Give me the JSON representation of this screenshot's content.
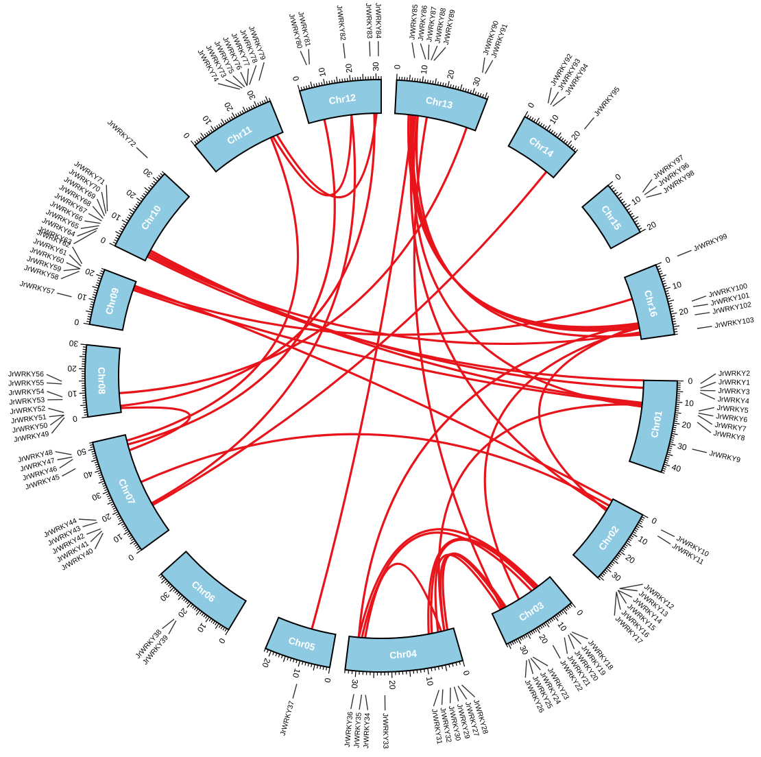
{
  "colors": {
    "chromosome_fill": "#8fcae3",
    "link": "#e8141b",
    "outline": "#000000"
  },
  "chromosomes": [
    {
      "name": "Chr01",
      "length": 44,
      "start_deg": 91.0,
      "end_deg": 109.0,
      "ticks": [
        0,
        10,
        20,
        30,
        40
      ]
    },
    {
      "name": "Chr02",
      "length": 36,
      "start_deg": 118.0,
      "end_deg": 133.0,
      "ticks": [
        0,
        10,
        20,
        30
      ]
    },
    {
      "name": "Chr03",
      "length": 36,
      "start_deg": 140.0,
      "end_deg": 155.0,
      "ticks": [
        0,
        10,
        20,
        30
      ]
    },
    {
      "name": "Chr04",
      "length": 33,
      "start_deg": 164.0,
      "end_deg": 187.0,
      "ticks": [
        0,
        10,
        20,
        30
      ]
    },
    {
      "name": "Chr05",
      "length": 22,
      "start_deg": 190.0,
      "end_deg": 203.0,
      "ticks": [
        0,
        10,
        20
      ]
    },
    {
      "name": "Chr06",
      "length": 38,
      "start_deg": 211.0,
      "end_deg": 228.0,
      "ticks": [
        0,
        10,
        20,
        30
      ]
    },
    {
      "name": "Chr07",
      "length": 53,
      "start_deg": 234.0,
      "end_deg": 257.0,
      "ticks": [
        0,
        10,
        20,
        30,
        40,
        50
      ]
    },
    {
      "name": "Chr08",
      "length": 30,
      "start_deg": 262.0,
      "end_deg": 276.0,
      "ticks": [
        0,
        10,
        20,
        30
      ]
    },
    {
      "name": "Chr09",
      "length": 23,
      "start_deg": 280.0,
      "end_deg": 291.0,
      "ticks": [
        0,
        10,
        20
      ]
    },
    {
      "name": "Chr10",
      "length": 34,
      "start_deg": 296.0,
      "end_deg": 313.0,
      "ticks": [
        0,
        10,
        20,
        30
      ]
    },
    {
      "name": "Chr11",
      "length": 36,
      "start_deg": 321.0,
      "end_deg": 338.0,
      "ticks": [
        0,
        10,
        20,
        30
      ]
    },
    {
      "name": "Chr12",
      "length": 32,
      "start_deg": 344.0,
      "end_deg": 360.0,
      "ticks": [
        0,
        10,
        20,
        30
      ]
    },
    {
      "name": "Chr13",
      "length": 36,
      "start_deg": 3.0,
      "end_deg": 21.0,
      "ticks": [
        0,
        10,
        20,
        30
      ]
    },
    {
      "name": "Chr14",
      "length": 24,
      "start_deg": 29.0,
      "end_deg": 41.0,
      "ticks": [
        0,
        10,
        20
      ]
    },
    {
      "name": "Chr15",
      "length": 20,
      "start_deg": 50.0,
      "end_deg": 61.0,
      "ticks": [
        0,
        10,
        20
      ]
    },
    {
      "name": "Chr16",
      "length": 28,
      "start_deg": 68.0,
      "end_deg": 82.0,
      "ticks": [
        0,
        10,
        20
      ]
    }
  ],
  "genes": [
    {
      "name": "JrWRKY1",
      "chr": "Chr01",
      "pos": 3
    },
    {
      "name": "JrWRKY2",
      "chr": "Chr01",
      "pos": 1
    },
    {
      "name": "JrWRKY3",
      "chr": "Chr01",
      "pos": 4
    },
    {
      "name": "JrWRKY4",
      "chr": "Chr01",
      "pos": 5
    },
    {
      "name": "JrWRKY5",
      "chr": "Chr01",
      "pos": 13
    },
    {
      "name": "JrWRKY6",
      "chr": "Chr01",
      "pos": 14
    },
    {
      "name": "JrWRKY7",
      "chr": "Chr01",
      "pos": 15
    },
    {
      "name": "JrWRKY8",
      "chr": "Chr01",
      "pos": 18
    },
    {
      "name": "JrWRKY9",
      "chr": "Chr01",
      "pos": 30
    },
    {
      "name": "JrWRKY10",
      "chr": "Chr02",
      "pos": 2
    },
    {
      "name": "JrWRKY11",
      "chr": "Chr02",
      "pos": 5
    },
    {
      "name": "JrWRKY12",
      "chr": "Chr02",
      "pos": 33
    },
    {
      "name": "JrWRKY13",
      "chr": "Chr02",
      "pos": 33
    },
    {
      "name": "JrWRKY14",
      "chr": "Chr02",
      "pos": 34
    },
    {
      "name": "JrWRKY15",
      "chr": "Chr02",
      "pos": 34
    },
    {
      "name": "JrWRKY16",
      "chr": "Chr02",
      "pos": 35
    },
    {
      "name": "JrWRKY17",
      "chr": "Chr02",
      "pos": 35
    },
    {
      "name": "JrWRKY18",
      "chr": "Chr03",
      "pos": 8
    },
    {
      "name": "JrWRKY19",
      "chr": "Chr03",
      "pos": 9
    },
    {
      "name": "JrWRKY20",
      "chr": "Chr03",
      "pos": 10
    },
    {
      "name": "JrWRKY21",
      "chr": "Chr03",
      "pos": 12
    },
    {
      "name": "JrWRKY22",
      "chr": "Chr03",
      "pos": 18
    },
    {
      "name": "JrWRKY23",
      "chr": "Chr03",
      "pos": 28
    },
    {
      "name": "JrWRKY24",
      "chr": "Chr03",
      "pos": 29
    },
    {
      "name": "JrWRKY25",
      "chr": "Chr03",
      "pos": 30
    },
    {
      "name": "JrWRKY26",
      "chr": "Chr03",
      "pos": 31
    },
    {
      "name": "JrWRKY27",
      "chr": "Chr04",
      "pos": 3
    },
    {
      "name": "JrWRKY28",
      "chr": "Chr04",
      "pos": 2
    },
    {
      "name": "JrWRKY29",
      "chr": "Chr04",
      "pos": 4
    },
    {
      "name": "JrWRKY30",
      "chr": "Chr04",
      "pos": 5
    },
    {
      "name": "JrWRKY31",
      "chr": "Chr04",
      "pos": 8
    },
    {
      "name": "JrWRKY32",
      "chr": "Chr04",
      "pos": 7
    },
    {
      "name": "JrWRKY33",
      "chr": "Chr04",
      "pos": 22
    },
    {
      "name": "JrWRKY34",
      "chr": "Chr04",
      "pos": 27
    },
    {
      "name": "JrWRKY35",
      "chr": "Chr04",
      "pos": 28
    },
    {
      "name": "JrWRKY36",
      "chr": "Chr04",
      "pos": 30
    },
    {
      "name": "JrWRKY37",
      "chr": "Chr05",
      "pos": 9
    },
    {
      "name": "JrWRKY38",
      "chr": "Chr06",
      "pos": 21
    },
    {
      "name": "JrWRKY39",
      "chr": "Chr06",
      "pos": 20
    },
    {
      "name": "JrWRKY40",
      "chr": "Chr07",
      "pos": 15
    },
    {
      "name": "JrWRKY41",
      "chr": "Chr07",
      "pos": 16
    },
    {
      "name": "JrWRKY42",
      "chr": "Chr07",
      "pos": 17
    },
    {
      "name": "JrWRKY43",
      "chr": "Chr07",
      "pos": 20
    },
    {
      "name": "JrWRKY44",
      "chr": "Chr07",
      "pos": 21
    },
    {
      "name": "JrWRKY45",
      "chr": "Chr07",
      "pos": 44
    },
    {
      "name": "JrWRKY46",
      "chr": "Chr07",
      "pos": 48
    },
    {
      "name": "JrWRKY47",
      "chr": "Chr07",
      "pos": 49
    },
    {
      "name": "JrWRKY48",
      "chr": "Chr07",
      "pos": 50
    },
    {
      "name": "JrWRKY49",
      "chr": "Chr08",
      "pos": 1
    },
    {
      "name": "JrWRKY50",
      "chr": "Chr08",
      "pos": 2
    },
    {
      "name": "JrWRKY51",
      "chr": "Chr08",
      "pos": 2
    },
    {
      "name": "JrWRKY52",
      "chr": "Chr08",
      "pos": 3
    },
    {
      "name": "JrWRKY53",
      "chr": "Chr08",
      "pos": 8
    },
    {
      "name": "JrWRKY54",
      "chr": "Chr08",
      "pos": 9
    },
    {
      "name": "JrWRKY55",
      "chr": "Chr08",
      "pos": 14
    },
    {
      "name": "JrWRKY56",
      "chr": "Chr08",
      "pos": 15
    },
    {
      "name": "JrWRKY57",
      "chr": "Chr09",
      "pos": 9
    },
    {
      "name": "JrWRKY58",
      "chr": "Chr09",
      "pos": 19
    },
    {
      "name": "JrWRKY59",
      "chr": "Chr09",
      "pos": 20
    },
    {
      "name": "JrWRKY60",
      "chr": "Chr09",
      "pos": 20
    },
    {
      "name": "JrWRKY61",
      "chr": "Chr09",
      "pos": 21
    },
    {
      "name": "JrWRKY62",
      "chr": "Chr09",
      "pos": 22
    },
    {
      "name": "JrWRKY63",
      "chr": "Chr10",
      "pos": 2
    },
    {
      "name": "JrWRKY64",
      "chr": "Chr10",
      "pos": 3
    },
    {
      "name": "JrWRKY65",
      "chr": "Chr10",
      "pos": 4
    },
    {
      "name": "JrWRKY66",
      "chr": "Chr10",
      "pos": 5
    },
    {
      "name": "JrWRKY67",
      "chr": "Chr10",
      "pos": 6
    },
    {
      "name": "JrWRKY68",
      "chr": "Chr10",
      "pos": 7
    },
    {
      "name": "JrWRKY69",
      "chr": "Chr10",
      "pos": 8
    },
    {
      "name": "JrWRKY70",
      "chr": "Chr10",
      "pos": 9
    },
    {
      "name": "JrWRKY71",
      "chr": "Chr10",
      "pos": 10
    },
    {
      "name": "JrWRKY72",
      "chr": "Chr10",
      "pos": 34
    },
    {
      "name": "JrWRKY73",
      "chr": "Chr11",
      "pos": 28
    },
    {
      "name": "JrWRKY74",
      "chr": "Chr11",
      "pos": 27
    },
    {
      "name": "JrWRKY75",
      "chr": "Chr11",
      "pos": 29
    },
    {
      "name": "JrWRKY76",
      "chr": "Chr11",
      "pos": 30
    },
    {
      "name": "JrWRKY77",
      "chr": "Chr11",
      "pos": 30
    },
    {
      "name": "JrWRKY78",
      "chr": "Chr11",
      "pos": 31
    },
    {
      "name": "JrWRKY79",
      "chr": "Chr11",
      "pos": 35
    },
    {
      "name": "JrWRKY80",
      "chr": "Chr12",
      "pos": 5
    },
    {
      "name": "JrWRKY81",
      "chr": "Chr12",
      "pos": 6
    },
    {
      "name": "JrWRKY82",
      "chr": "Chr12",
      "pos": 19
    },
    {
      "name": "JrWRKY83",
      "chr": "Chr12",
      "pos": 28
    },
    {
      "name": "JrWRKY84",
      "chr": "Chr12",
      "pos": 31
    },
    {
      "name": "JrWRKY85",
      "chr": "Chr13",
      "pos": 6
    },
    {
      "name": "JrWRKY86",
      "chr": "Chr13",
      "pos": 10
    },
    {
      "name": "JrWRKY87",
      "chr": "Chr13",
      "pos": 11
    },
    {
      "name": "JrWRKY88",
      "chr": "Chr13",
      "pos": 12
    },
    {
      "name": "JrWRKY89",
      "chr": "Chr13",
      "pos": 13
    },
    {
      "name": "JrWRKY90",
      "chr": "Chr13",
      "pos": 31
    },
    {
      "name": "JrWRKY91",
      "chr": "Chr13",
      "pos": 32
    },
    {
      "name": "JrWRKY92",
      "chr": "Chr14",
      "pos": 5
    },
    {
      "name": "JrWRKY93",
      "chr": "Chr14",
      "pos": 6
    },
    {
      "name": "JrWRKY94",
      "chr": "Chr14",
      "pos": 7
    },
    {
      "name": "JrWRKY95",
      "chr": "Chr14",
      "pos": 21
    },
    {
      "name": "JrWRKY96",
      "chr": "Chr15",
      "pos": 10
    },
    {
      "name": "JrWRKY97",
      "chr": "Chr15",
      "pos": 9
    },
    {
      "name": "JrWRKY98",
      "chr": "Chr15",
      "pos": 11
    },
    {
      "name": "JrWRKY99",
      "chr": "Chr16",
      "pos": 0
    },
    {
      "name": "JrWRKY100",
      "chr": "Chr16",
      "pos": 17
    },
    {
      "name": "JrWRKY101",
      "chr": "Chr16",
      "pos": 19
    },
    {
      "name": "JrWRKY102",
      "chr": "Chr16",
      "pos": 22
    },
    {
      "name": "JrWRKY103",
      "chr": "Chr16",
      "pos": 27
    }
  ],
  "links": [
    {
      "a": "Chr16",
      "pa": 21,
      "b": "Chr13",
      "pb": 6
    },
    {
      "a": "Chr16",
      "pa": 22,
      "b": "Chr13",
      "pb": 7
    },
    {
      "a": "Chr16",
      "pa": 23,
      "b": "Chr13",
      "pb": 8
    },
    {
      "a": "Chr16",
      "pa": 26,
      "b": "Chr13",
      "pb": 10
    },
    {
      "a": "Chr16",
      "pa": 10,
      "b": "Chr09",
      "pb": 20
    },
    {
      "a": "Chr16",
      "pa": 21,
      "b": "Chr04",
      "pb": 30
    },
    {
      "a": "Chr16",
      "pa": 22,
      "b": "Chr02",
      "pb": 7
    },
    {
      "a": "Chr16",
      "pa": 23,
      "b": "Chr03",
      "pb": 20
    },
    {
      "a": "Chr16",
      "pa": 25,
      "b": "Chr10",
      "pb": 3
    },
    {
      "a": "Chr01",
      "pa": 0,
      "b": "Chr10",
      "pb": 2
    },
    {
      "a": "Chr01",
      "pa": 4,
      "b": "Chr10",
      "pb": 4
    },
    {
      "a": "Chr01",
      "pa": 12,
      "b": "Chr10",
      "pb": 5
    },
    {
      "a": "Chr01",
      "pa": 13,
      "b": "Chr09",
      "pb": 19
    },
    {
      "a": "Chr01",
      "pa": 14,
      "b": "Chr13",
      "pb": 10
    },
    {
      "a": "Chr01",
      "pa": 13,
      "b": "Chr04",
      "pb": 3
    },
    {
      "a": "Chr13",
      "pa": 14,
      "b": "Chr03",
      "pb": 30
    },
    {
      "a": "Chr13",
      "pa": 32,
      "b": "Chr08",
      "pb": 9
    },
    {
      "a": "Chr13",
      "pa": 9,
      "b": "Chr02",
      "pb": 6
    },
    {
      "a": "Chr14",
      "pa": 20,
      "b": "Chr07",
      "pb": 15
    },
    {
      "a": "Chr12",
      "pa": 7,
      "b": "Chr07",
      "pb": 48
    },
    {
      "a": "Chr12",
      "pa": 19,
      "b": "Chr07",
      "pb": 16
    },
    {
      "a": "Chr12",
      "pa": 29,
      "b": "Chr08",
      "pb": 3
    },
    {
      "a": "Chr11",
      "pa": 30,
      "b": "Chr07",
      "pb": 50
    },
    {
      "a": "Chr11",
      "pa": 31,
      "b": "Chr12",
      "pb": 19
    },
    {
      "a": "Chr11",
      "pa": 33,
      "b": "Chr12",
      "pb": 30
    },
    {
      "a": "Chr09",
      "pa": 21,
      "b": "Chr02",
      "pb": 1
    },
    {
      "a": "Chr07",
      "pa": 28,
      "b": "Chr02",
      "pb": 4
    },
    {
      "a": "Chr08",
      "pa": 2,
      "b": "Chr07",
      "pb": 45
    },
    {
      "a": "Chr05",
      "pa": 9,
      "b": "Chr13",
      "pb": 8
    },
    {
      "a": "Chr04",
      "pa": 2,
      "b": "Chr03",
      "pb": 28
    },
    {
      "a": "Chr04",
      "pa": 3,
      "b": "Chr03",
      "pb": 29
    },
    {
      "a": "Chr04",
      "pa": 5,
      "b": "Chr03",
      "pb": 31
    },
    {
      "a": "Chr04",
      "pa": 7,
      "b": "Chr03",
      "pb": 10
    },
    {
      "a": "Chr04",
      "pa": 8,
      "b": "Chr03",
      "pb": 9
    },
    {
      "a": "Chr04",
      "pa": 30,
      "b": "Chr03",
      "pb": 8
    },
    {
      "a": "Chr04",
      "pa": 29,
      "b": "Chr03",
      "pb": 12
    },
    {
      "a": "Chr04",
      "pa": 28,
      "b": "Chr04",
      "pb": 4
    }
  ]
}
